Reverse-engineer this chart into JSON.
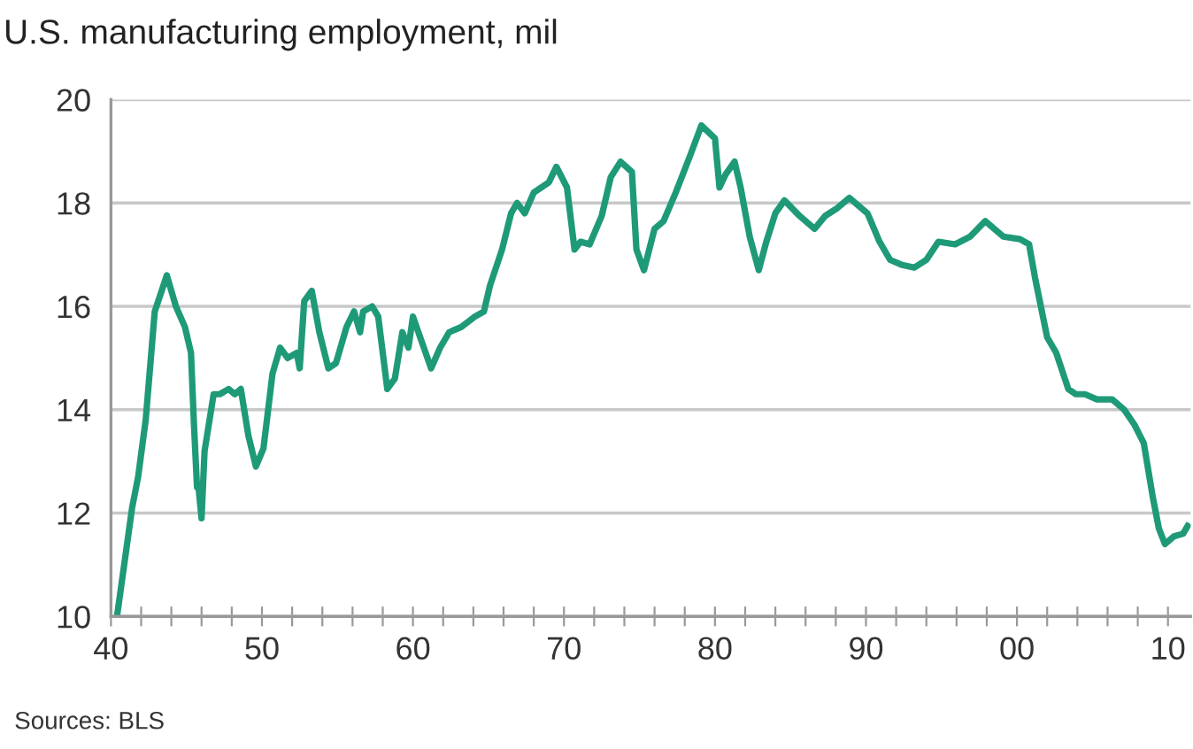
{
  "chart_data": {
    "type": "line",
    "title": "U.S. manufacturing employment, mil",
    "annotations": [
      "Sources: BLS"
    ],
    "series": [
      {
        "color": "#1f9a78",
        "x": [
          1940.4,
          1941.4,
          1941.8,
          1942.3,
          1942.9,
          1943.7,
          1944.3,
          1944.9,
          1945.3,
          1945.5,
          1945.7,
          1945.8,
          1946.0,
          1946.2,
          1946.8,
          1947.2,
          1947.8,
          1948.2,
          1948.6,
          1949.1,
          1949.6,
          1950.1,
          1950.7,
          1951.2,
          1951.7,
          1952.3,
          1952.5,
          1952.8,
          1953.3,
          1953.8,
          1954.4,
          1954.9,
          1955.6,
          1956.1,
          1956.5,
          1956.7,
          1957.3,
          1957.7,
          1958.3,
          1958.8,
          1959.3,
          1959.7,
          1960.0,
          1960.6,
          1961.2,
          1961.8,
          1962.4,
          1963.2,
          1964.1,
          1964.7,
          1965.1,
          1965.9,
          1966.5,
          1966.9,
          1967.4,
          1968.0,
          1969.0,
          1969.5,
          1970.2,
          1970.7,
          1971.1,
          1971.7,
          1972.5,
          1973.1,
          1973.75,
          1974.5,
          1974.8,
          1975.3,
          1976.0,
          1976.6,
          1977.4,
          1978.4,
          1979.1,
          1980.0,
          1980.3,
          1980.7,
          1981.3,
          1981.7,
          1982.3,
          1982.9,
          1983.4,
          1984.0,
          1984.6,
          1985.6,
          1986.6,
          1987.3,
          1988.1,
          1988.9,
          1989.5,
          1990.1,
          1990.9,
          1991.6,
          1992.4,
          1993.2,
          1994.0,
          1994.8,
          1995.9,
          1996.9,
          1997.9,
          1998.5,
          1999.1,
          2000.2,
          2000.8,
          2001.2,
          2002.0,
          2002.6,
          2003.4,
          2003.9,
          2004.5,
          2005.3,
          2006.3,
          2007.1,
          2007.8,
          2008.4,
          2009.0,
          2009.4,
          2009.8,
          2010.4,
          2011.0,
          2011.3
        ],
        "values": [
          10.0,
          12.1,
          12.7,
          13.8,
          15.9,
          16.6,
          16.0,
          15.6,
          15.1,
          13.7,
          12.5,
          12.5,
          11.9,
          13.2,
          14.3,
          14.3,
          14.4,
          14.3,
          14.4,
          13.5,
          12.9,
          13.25,
          14.7,
          15.2,
          15.0,
          15.1,
          14.8,
          16.1,
          16.3,
          15.5,
          14.8,
          14.9,
          15.6,
          15.9,
          15.5,
          15.9,
          16.0,
          15.8,
          14.4,
          14.6,
          15.5,
          15.2,
          15.8,
          15.3,
          14.8,
          15.2,
          15.5,
          15.6,
          15.8,
          15.9,
          16.4,
          17.1,
          17.8,
          18.0,
          17.8,
          18.2,
          18.4,
          18.7,
          18.3,
          17.1,
          17.25,
          17.2,
          17.75,
          18.5,
          18.8,
          18.6,
          17.1,
          16.7,
          17.5,
          17.65,
          18.2,
          18.95,
          19.5,
          19.25,
          18.3,
          18.55,
          18.8,
          18.3,
          17.35,
          16.7,
          17.25,
          17.8,
          18.05,
          17.75,
          17.5,
          17.75,
          17.9,
          18.1,
          17.95,
          17.8,
          17.25,
          16.9,
          16.8,
          16.75,
          16.9,
          17.25,
          17.2,
          17.35,
          17.65,
          17.5,
          17.35,
          17.3,
          17.2,
          16.55,
          15.4,
          15.1,
          14.4,
          14.3,
          14.3,
          14.2,
          14.2,
          14.0,
          13.7,
          13.35,
          12.3,
          11.7,
          11.4,
          11.55,
          11.6,
          11.75
        ]
      }
    ],
    "xlim": [
      1940,
      2011.5
    ],
    "ylim": [
      10,
      20
    ],
    "yticks": [
      10,
      12,
      14,
      16,
      18,
      20
    ],
    "xticks": [
      {
        "value": 1940,
        "label": "40"
      },
      {
        "value": 1942,
        "label": null
      },
      {
        "value": 1944,
        "label": null
      },
      {
        "value": 1946,
        "label": null
      },
      {
        "value": 1948,
        "label": null
      },
      {
        "value": 1950,
        "label": "50"
      },
      {
        "value": 1952,
        "label": null
      },
      {
        "value": 1954,
        "label": null
      },
      {
        "value": 1956,
        "label": null
      },
      {
        "value": 1958,
        "label": null
      },
      {
        "value": 1960,
        "label": "60"
      },
      {
        "value": 1962,
        "label": null
      },
      {
        "value": 1964,
        "label": null
      },
      {
        "value": 1966,
        "label": null
      },
      {
        "value": 1968,
        "label": null
      },
      {
        "value": 1970,
        "label": "70"
      },
      {
        "value": 1972,
        "label": null
      },
      {
        "value": 1974,
        "label": null
      },
      {
        "value": 1976,
        "label": null
      },
      {
        "value": 1978,
        "label": null
      },
      {
        "value": 1980,
        "label": "80"
      },
      {
        "value": 1982,
        "label": null
      },
      {
        "value": 1984,
        "label": null
      },
      {
        "value": 1986,
        "label": null
      },
      {
        "value": 1988,
        "label": null
      },
      {
        "value": 1990,
        "label": "90"
      },
      {
        "value": 1992,
        "label": null
      },
      {
        "value": 1994,
        "label": null
      },
      {
        "value": 1996,
        "label": null
      },
      {
        "value": 1998,
        "label": null
      },
      {
        "value": 2000,
        "label": "00"
      },
      {
        "value": 2002,
        "label": null
      },
      {
        "value": 2004,
        "label": null
      },
      {
        "value": 2006,
        "label": null
      },
      {
        "value": 2008,
        "label": null
      },
      {
        "value": 2010,
        "label": "10"
      }
    ],
    "grid": "y",
    "legend": false,
    "line_style": "solid"
  }
}
